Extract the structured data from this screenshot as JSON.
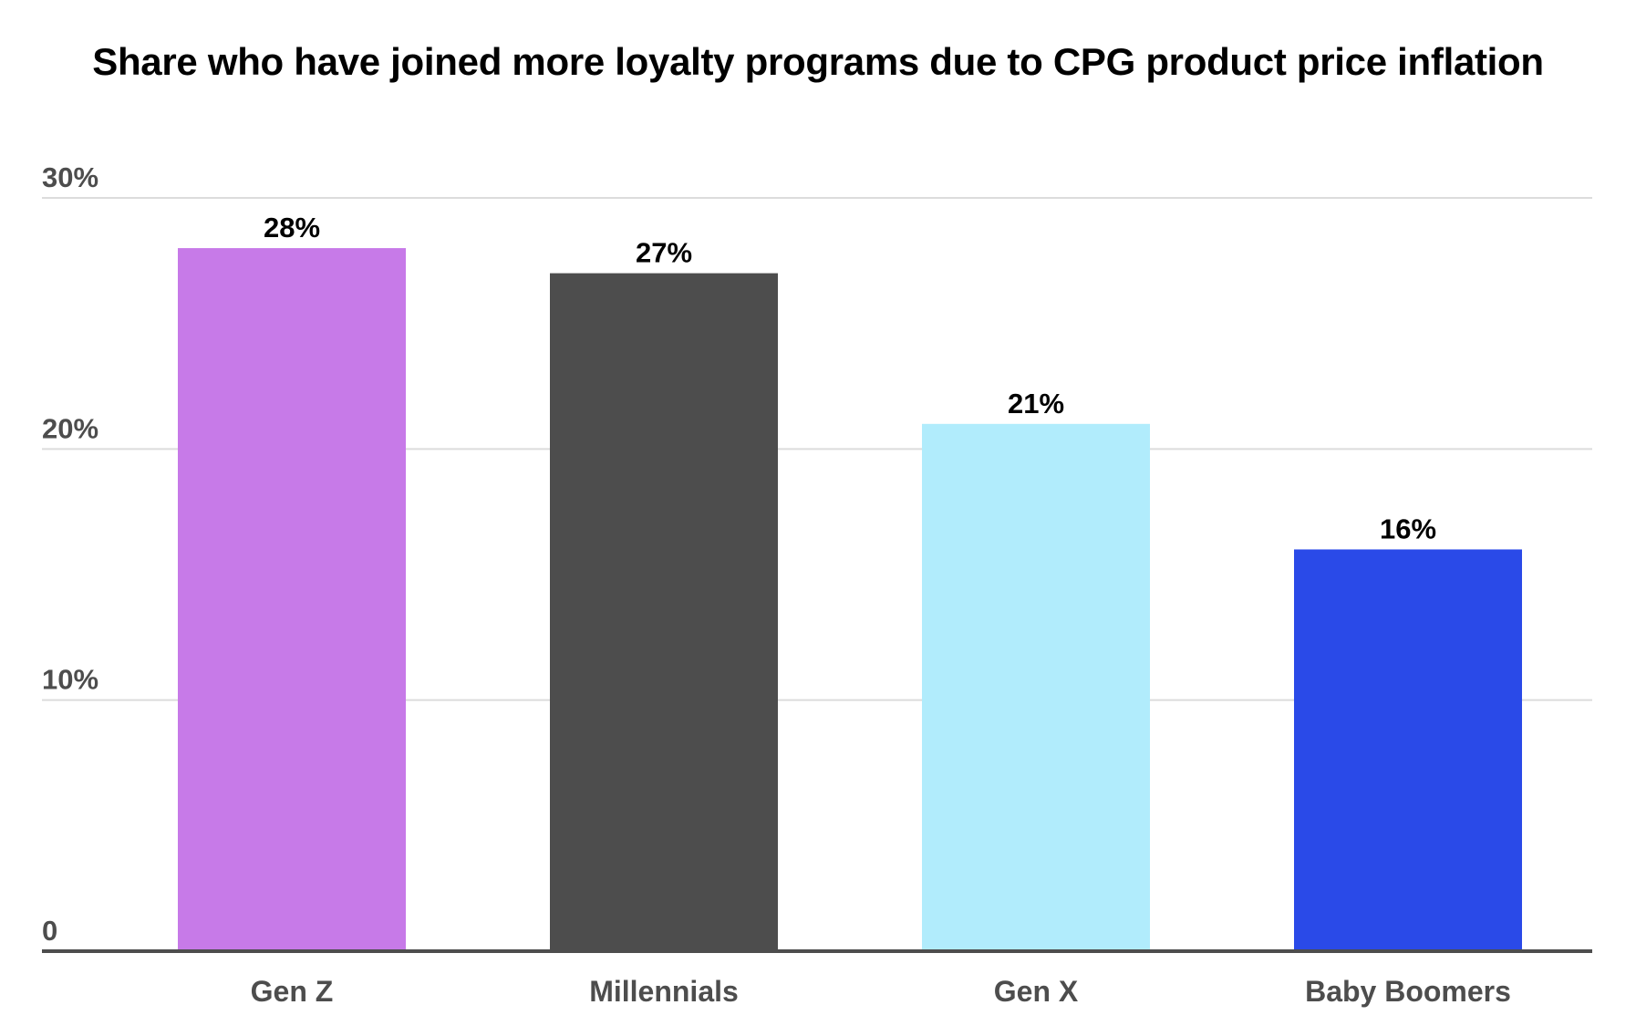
{
  "chart_data": {
    "type": "bar",
    "title": "Share who have joined more loyalty programs due to CPG product price inflation",
    "categories": [
      "Gen Z",
      "Millennials",
      "Gen X",
      "Baby Boomers"
    ],
    "values": [
      28,
      27,
      21,
      16
    ],
    "data_labels": [
      "28%",
      "27%",
      "21%",
      "16%"
    ],
    "bar_colors": [
      "#c77ae8",
      "#4d4d4d",
      "#b1ecfc",
      "#2a4ae8"
    ],
    "xlabel": "",
    "ylabel": "",
    "ylim": [
      0,
      30
    ],
    "yticks": [
      0,
      10,
      20,
      30
    ],
    "ytick_labels": [
      "0",
      "10%",
      "20%",
      "30%"
    ],
    "grid": true,
    "legend": "none"
  }
}
